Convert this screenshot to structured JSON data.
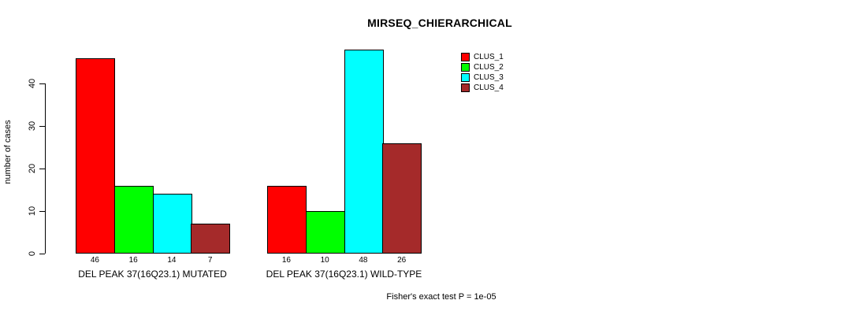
{
  "chart_data": {
    "type": "bar",
    "title": "MIRSEQ_CHIERARCHICAL",
    "ylabel": "number of cases",
    "xlabel": "",
    "ylim": [
      0,
      48
    ],
    "yticks": [
      0,
      10,
      20,
      30,
      40
    ],
    "grid": false,
    "legend_position": "top-right",
    "categories": [
      "DEL PEAK 37(16Q23.1) MUTATED",
      "DEL PEAK 37(16Q23.1) WILD-TYPE"
    ],
    "series": [
      {
        "name": "CLUS_1",
        "color": "#ff0000",
        "values": [
          46,
          16
        ]
      },
      {
        "name": "CLUS_2",
        "color": "#00ff00",
        "values": [
          16,
          10
        ]
      },
      {
        "name": "CLUS_3",
        "color": "#00ffff",
        "values": [
          14,
          48
        ]
      },
      {
        "name": "CLUS_4",
        "color": "#a52a2a",
        "values": [
          7,
          26
        ]
      }
    ],
    "bar_value_labels": [
      [
        46,
        16,
        14,
        7
      ],
      [
        16,
        10,
        48,
        26
      ]
    ],
    "annotation": "Fisher's exact test P = 1e-05"
  }
}
